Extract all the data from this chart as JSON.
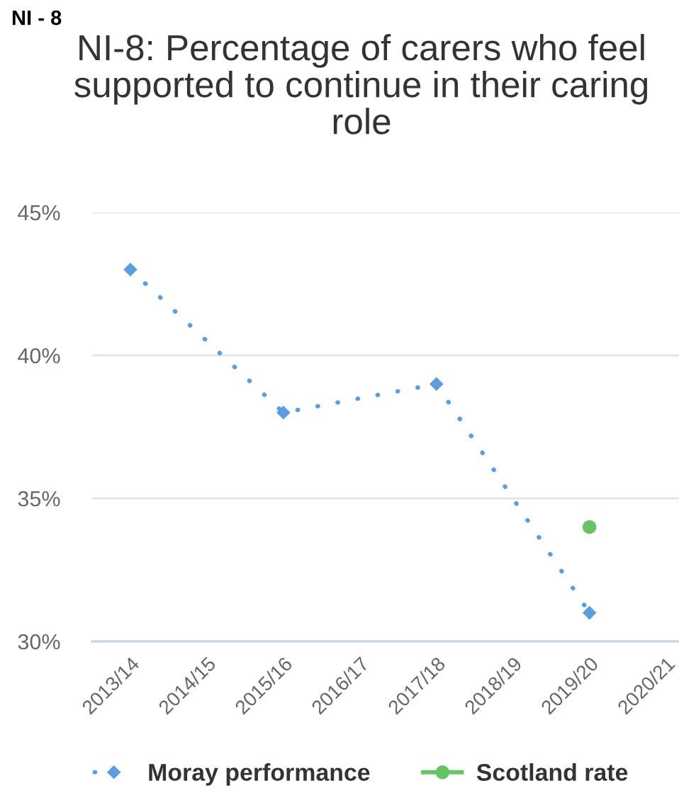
{
  "chart_data": {
    "type": "line",
    "title": "NI-8: Percentage of carers who feel supported to continue in their caring role",
    "annotations": [
      "NI - 8"
    ],
    "categories": [
      "2013/14",
      "2014/15",
      "2015/16",
      "2016/17",
      "2017/18",
      "2018/19",
      "2019/20",
      "2020/21"
    ],
    "series": [
      {
        "name": "Moray performance",
        "color": "#5a9ee0",
        "values": [
          43,
          null,
          38,
          null,
          39,
          null,
          31,
          null
        ],
        "marker": "diamond",
        "line_style": "dotted"
      },
      {
        "name": "Scotland rate",
        "color": "#66c466",
        "values": [
          null,
          null,
          null,
          null,
          null,
          null,
          34,
          null
        ],
        "marker": "circle",
        "line_style": "solid"
      }
    ],
    "ylim": [
      30,
      45
    ],
    "yticks": [
      {
        "value": 30,
        "label": "30%"
      },
      {
        "value": 35,
        "label": "35%"
      },
      {
        "value": 40,
        "label": "40%"
      },
      {
        "value": 45,
        "label": "45%"
      }
    ],
    "grid": "y",
    "legend": "bottom"
  }
}
